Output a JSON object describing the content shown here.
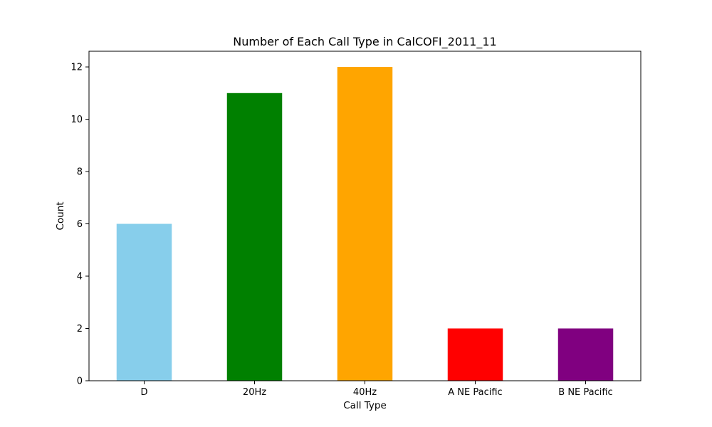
{
  "chart_data": {
    "type": "bar",
    "title": "Number of Each Call Type in CalCOFI_2011_11",
    "xlabel": "Call Type",
    "ylabel": "Count",
    "categories": [
      "D",
      "20Hz",
      "40Hz",
      "A NE Pacific",
      "B NE Pacific"
    ],
    "values": [
      6,
      11,
      12,
      2,
      2
    ],
    "colors": [
      "#87ceeb",
      "#008000",
      "#ffa500",
      "#ff0000",
      "#800080"
    ],
    "ylim": [
      0,
      12.6
    ],
    "yticks": [
      0,
      2,
      4,
      6,
      8,
      10,
      12
    ],
    "grid": false,
    "legend": "none"
  }
}
